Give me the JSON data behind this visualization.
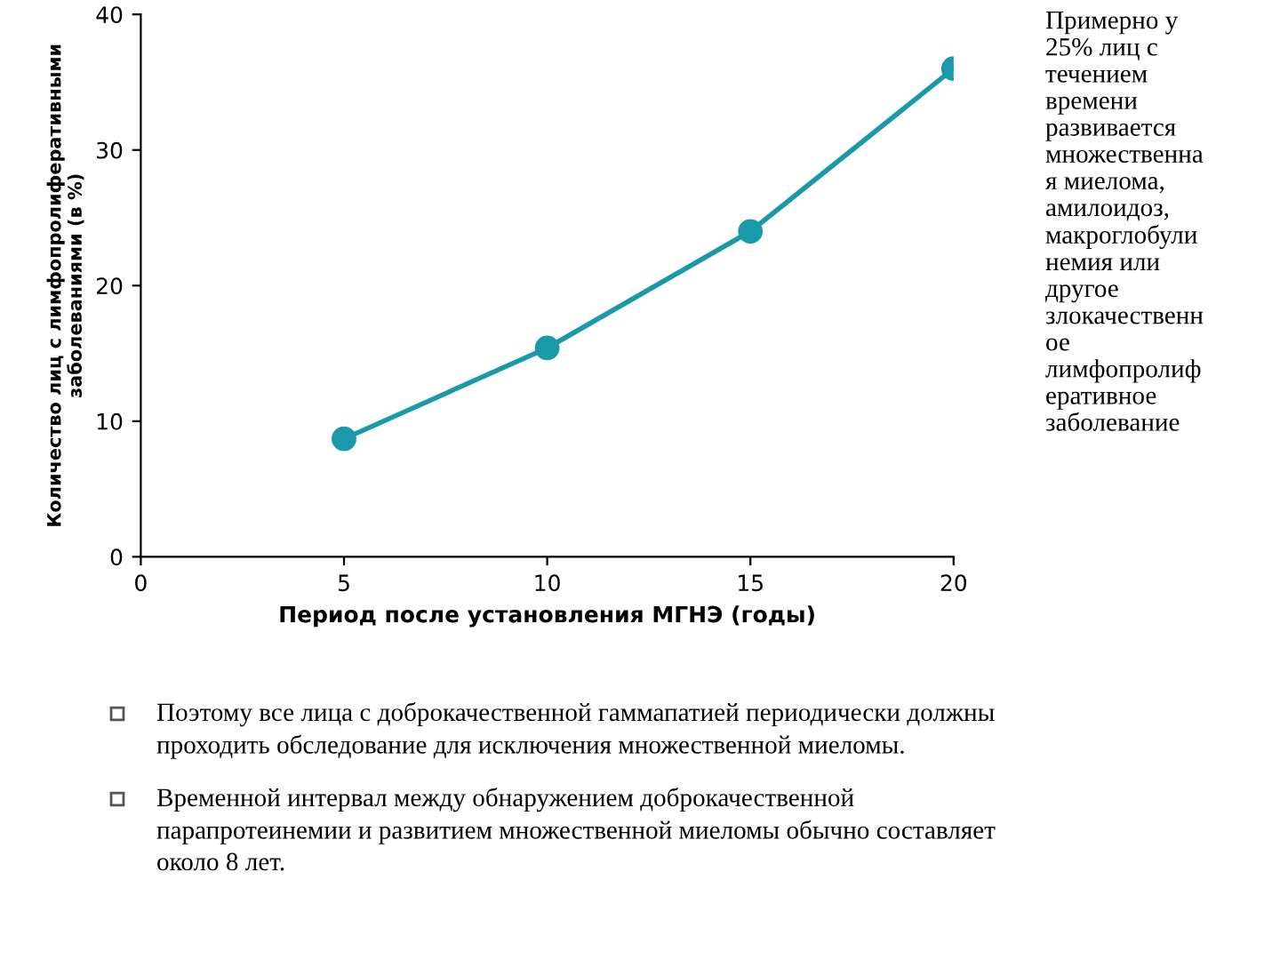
{
  "chart_data": {
    "type": "line",
    "xlabel": "Период после установления МГНЭ (годы)",
    "ylabel": "Количество лиц с лимфопролиферативными\nзаболеваниями (в %)",
    "x": [
      5,
      10,
      15,
      20
    ],
    "series": [
      {
        "color": "#1a9aa8",
        "values": [
          8.7,
          15.4,
          24.0,
          36.0
        ]
      }
    ],
    "xlim": [
      0,
      20
    ],
    "xticks": [
      0,
      5,
      10,
      15,
      20
    ],
    "ylim": [
      0,
      40
    ],
    "yticks": [
      0,
      10,
      20,
      30,
      40
    ],
    "marker": "circle",
    "line_style": "solid",
    "grid": false,
    "annotations": [
      "Примерно у\n25% лиц с\nтечением\nвремени\nразвивается\nмножественна\nя миелома,\nамилоидоз,\nмакроглобули\nнемия или\nдругое\nзлокачественн\nое\nлимфопролиф\nеративное\nзаболевание",
      "Поэтому все лица с доброкачественной гаммапатией периодически должны\nпроходить обследование для исключения множественной миеломы.",
      "Временной интервал между обнаружением доброкачественной\nпарапротеинемии и развитием множественной миеломы обычно составляет\nоколо 8 лет."
    ]
  }
}
